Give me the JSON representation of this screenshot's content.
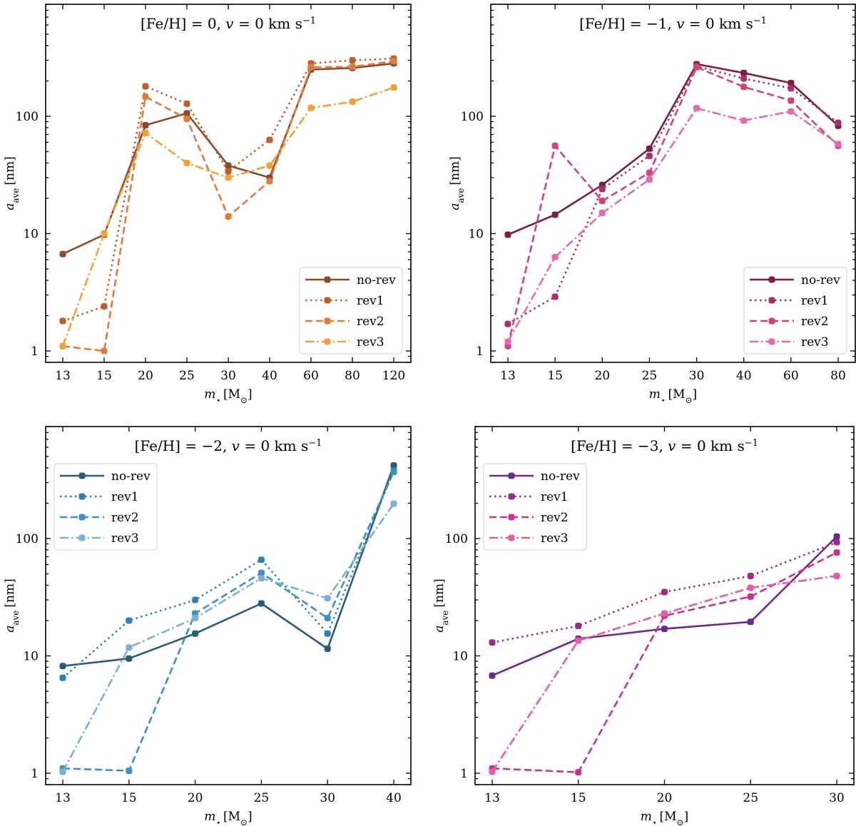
{
  "chart_data": [
    {
      "type": "line",
      "title": "[Fe/H] = 0, v = 0 km s⁻¹",
      "xlabel": "m⋆ [M⊙]",
      "ylabel": "a_ave [nm]",
      "yscale": "log",
      "ylim": [
        0.8,
        900
      ],
      "yticks": [
        1,
        10,
        100
      ],
      "ytick_labels": [
        "1",
        "10",
        "100"
      ],
      "legend_loc": "lower-right",
      "categories": [
        "13",
        "15",
        "20",
        "25",
        "30",
        "40",
        "60",
        "80",
        "120"
      ],
      "series": [
        {
          "name": "no-rev",
          "style": "solid",
          "color": "#8c4a2c",
          "values": [
            6.7,
            9.8,
            84,
            106,
            38,
            30,
            250,
            258,
            282
          ]
        },
        {
          "name": "rev1",
          "style": "dotted",
          "color": "#c45c2a",
          "values": [
            1.8,
            2.4,
            180,
            128,
            34,
            63,
            282,
            300,
            310
          ]
        },
        {
          "name": "rev2",
          "style": "dashed",
          "color": "#e07b39",
          "values": [
            1.1,
            1.0,
            147,
            95,
            14,
            28,
            262,
            264,
            295
          ]
        },
        {
          "name": "rev3",
          "style": "dashdot",
          "color": "#f5a033",
          "values": [
            1.1,
            10.0,
            72,
            40,
            30,
            38,
            118,
            133,
            176
          ]
        }
      ]
    },
    {
      "type": "line",
      "title": "[Fe/H] = −1, v = 0 km s⁻¹",
      "xlabel": "m⋆ [M⊙]",
      "ylabel": "a_ave [nm]",
      "yscale": "log",
      "ylim": [
        0.8,
        900
      ],
      "yticks": [
        1,
        10,
        100
      ],
      "ytick_labels": [
        "1",
        "10",
        "100"
      ],
      "legend_loc": "lower-right",
      "categories": [
        "13",
        "15",
        "20",
        "25",
        "30",
        "40",
        "60",
        "80"
      ],
      "series": [
        {
          "name": "no-rev",
          "style": "solid",
          "color": "#7a1f3d",
          "values": [
            9.8,
            14.5,
            26,
            53,
            278,
            234,
            192,
            83
          ]
        },
        {
          "name": "rev1",
          "style": "dotted",
          "color": "#a8306b",
          "values": [
            1.7,
            2.9,
            24,
            46,
            268,
            210,
            173,
            88
          ]
        },
        {
          "name": "rev2",
          "style": "dashed",
          "color": "#d6407f",
          "values": [
            1.1,
            56,
            19,
            33,
            262,
            178,
            136,
            56
          ]
        },
        {
          "name": "rev3",
          "style": "dashdot",
          "color": "#e46ab0",
          "values": [
            1.2,
            6.3,
            15,
            29,
            117,
            92,
            110,
            58
          ]
        }
      ]
    },
    {
      "type": "line",
      "title": "[Fe/H] = −2, v = 0 km s⁻¹",
      "xlabel": "m⋆ [M⊙]",
      "ylabel": "a_ave [nm]",
      "yscale": "log",
      "ylim": [
        0.8,
        900
      ],
      "yticks": [
        1,
        10,
        100
      ],
      "ytick_labels": [
        "1",
        "10",
        "100"
      ],
      "legend_loc": "upper-left",
      "categories": [
        "13",
        "15",
        "20",
        "25",
        "30",
        "40"
      ],
      "series": [
        {
          "name": "no-rev",
          "style": "solid",
          "color": "#2a5c7a",
          "values": [
            8.2,
            9.5,
            15.5,
            28,
            11.5,
            420
          ]
        },
        {
          "name": "rev1",
          "style": "dotted",
          "color": "#2f80b5",
          "values": [
            6.5,
            20,
            30,
            66,
            15.5,
            380
          ]
        },
        {
          "name": "rev2",
          "style": "dashed",
          "color": "#3a90c8",
          "values": [
            1.1,
            1.05,
            23,
            51,
            21,
            370
          ]
        },
        {
          "name": "rev3",
          "style": "dashdot",
          "color": "#7ab0d6",
          "values": [
            1.03,
            11.8,
            21,
            46,
            31,
            198
          ]
        }
      ]
    },
    {
      "type": "line",
      "title": "[Fe/H] = −3, v = 0 km s⁻¹",
      "xlabel": "m⋆ [M⊙]",
      "ylabel": "a_ave [nm]",
      "yscale": "log",
      "ylim": [
        0.8,
        900
      ],
      "yticks": [
        1,
        10,
        100
      ],
      "ytick_labels": [
        "1",
        "10",
        "100"
      ],
      "legend_loc": "upper-left",
      "categories": [
        "13",
        "15",
        "20",
        "25",
        "30"
      ],
      "series": [
        {
          "name": "no-rev",
          "style": "solid",
          "color": "#6a2c8c",
          "values": [
            6.8,
            14,
            17,
            19.5,
            104
          ]
        },
        {
          "name": "rev1",
          "style": "dotted",
          "color": "#9c2a8c",
          "values": [
            13,
            18,
            35,
            48,
            93
          ]
        },
        {
          "name": "rev2",
          "style": "dashed",
          "color": "#c8338f",
          "values": [
            1.1,
            1.02,
            22,
            32,
            76
          ]
        },
        {
          "name": "rev3",
          "style": "dashdot",
          "color": "#e85aa5",
          "values": [
            1.03,
            13.5,
            23,
            38,
            48
          ]
        }
      ]
    }
  ]
}
